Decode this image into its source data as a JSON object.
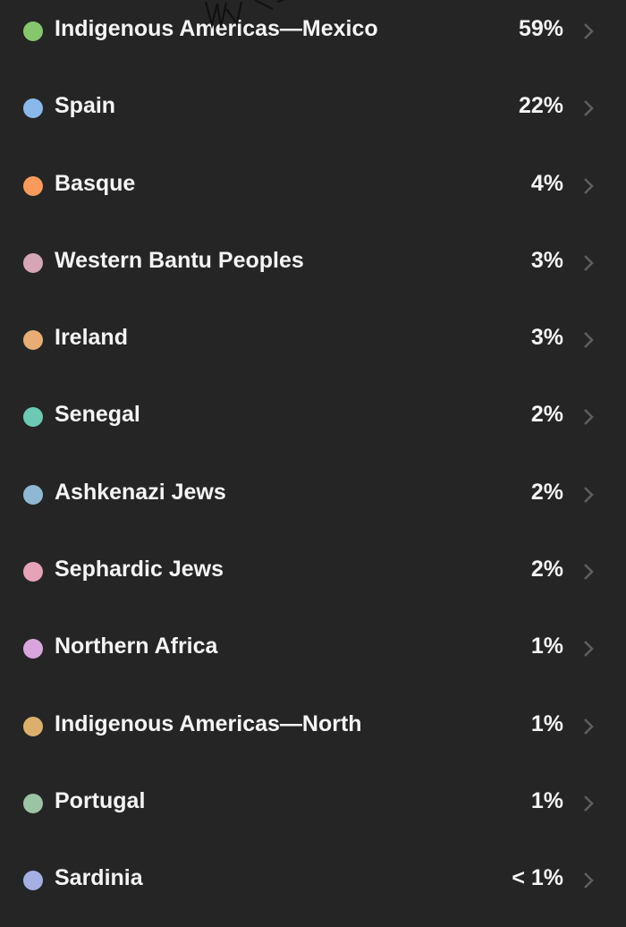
{
  "items": [
    {
      "label": "Indigenous Americas—Mexico",
      "percent": "59%",
      "color": "#86c66c"
    },
    {
      "label": "Spain",
      "percent": "22%",
      "color": "#8ab8ea"
    },
    {
      "label": "Basque",
      "percent": "4%",
      "color": "#f99a5a"
    },
    {
      "label": "Western Bantu Peoples",
      "percent": "3%",
      "color": "#d6a6b6"
    },
    {
      "label": "Ireland",
      "percent": "3%",
      "color": "#e8ac74"
    },
    {
      "label": "Senegal",
      "percent": "2%",
      "color": "#6cc9b2"
    },
    {
      "label": "Ashkenazi Jews",
      "percent": "2%",
      "color": "#8fb9d2"
    },
    {
      "label": "Sephardic Jews",
      "percent": "2%",
      "color": "#e6a2b6"
    },
    {
      "label": "Northern Africa",
      "percent": "1%",
      "color": "#d8a6dc"
    },
    {
      "label": "Indigenous Americas—North",
      "percent": "1%",
      "color": "#dcb06c"
    },
    {
      "label": "Portugal",
      "percent": "1%",
      "color": "#9cc4a4"
    },
    {
      "label": "Sardinia",
      "percent": "< 1%",
      "color": "#a4b0e4"
    }
  ],
  "icons": {
    "chevron": "chevron-right-icon"
  }
}
